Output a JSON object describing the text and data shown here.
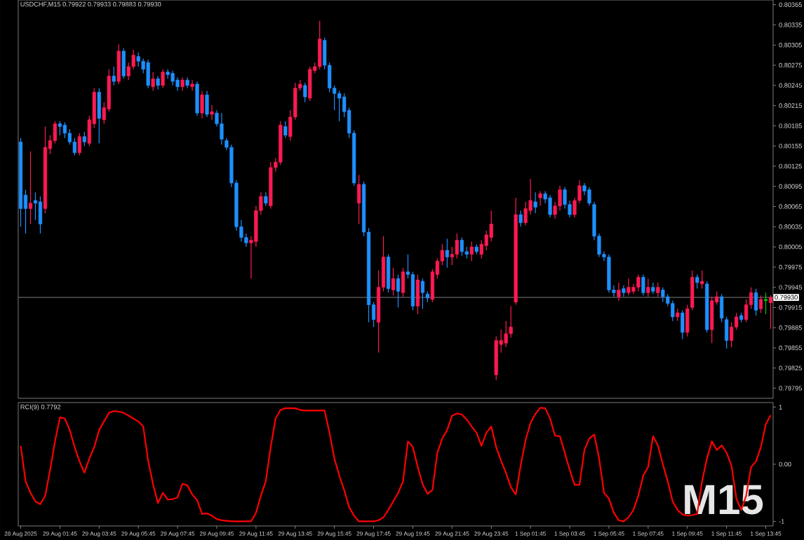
{
  "chart_data": [
    {
      "type": "candlestick",
      "title": "USDCHF,M15  0.79922 0.79933 0.79883 0.79930",
      "tick_labels": "y",
      "ylim": [
        0.7978,
        0.80372
      ],
      "yticks": [
        0.80365,
        0.80335,
        0.80305,
        0.80275,
        0.80245,
        0.80215,
        0.80185,
        0.80155,
        0.80125,
        0.80095,
        0.80065,
        0.80035,
        0.80005,
        0.79975,
        0.79945,
        0.79915,
        0.79885,
        0.79855,
        0.79825,
        0.79795
      ],
      "ref_lines": [
        {
          "axis": "y",
          "value": 0.7993,
          "label": "0.79930",
          "color": "#808080"
        }
      ],
      "categories": [
        null,
        null,
        null,
        null,
        null,
        null,
        null,
        null,
        null,
        null,
        null,
        null,
        null,
        null,
        null,
        null,
        null,
        null,
        null,
        null,
        null,
        null,
        null,
        null,
        null,
        null,
        null,
        null,
        null,
        null,
        null,
        null,
        null,
        null,
        null,
        null,
        null,
        null,
        null,
        null,
        null,
        null,
        null,
        null,
        null,
        null,
        null,
        null,
        null,
        null,
        null,
        null,
        null,
        null,
        null,
        null,
        null,
        null,
        null,
        null,
        null,
        null,
        null,
        null,
        null,
        null,
        null,
        null,
        null,
        null,
        null,
        null,
        null,
        null,
        null,
        null,
        null,
        null,
        null,
        null,
        null,
        null,
        null,
        null,
        null,
        null,
        null,
        null,
        null,
        null,
        null,
        null,
        null,
        null,
        null,
        null,
        null,
        null,
        null,
        null,
        null,
        null,
        null,
        null,
        null,
        null,
        null,
        null,
        null,
        null,
        null,
        null,
        null,
        null,
        null,
        null,
        null,
        null,
        null,
        null,
        null,
        null,
        null,
        null,
        null,
        null,
        null,
        null,
        null,
        null,
        null,
        null,
        null,
        null,
        null,
        null,
        null,
        null,
        null,
        null,
        null,
        null,
        null,
        null,
        null,
        null,
        null,
        null,
        null,
        null,
        null,
        null,
        null,
        null
      ],
      "ohlc": [
        [
          0.80161,
          0.80167,
          0.80035,
          0.80062
        ],
        [
          0.80082,
          0.8009,
          0.80025,
          0.80062
        ],
        [
          0.80062,
          0.80147,
          0.80039,
          0.8007
        ],
        [
          0.80074,
          0.80086,
          0.80045,
          0.8007
        ],
        [
          0.80072,
          0.8008,
          0.80025,
          0.80039
        ],
        [
          0.80062,
          0.80184,
          0.80055,
          0.80153
        ],
        [
          0.80151,
          0.80171,
          0.80143,
          0.80163
        ],
        [
          0.80163,
          0.80192,
          0.80159,
          0.80188
        ],
        [
          0.80188,
          0.80192,
          0.80171,
          0.80184
        ],
        [
          0.80186,
          0.8019,
          0.80167,
          0.80174
        ],
        [
          0.80174,
          0.8018,
          0.80157,
          0.80161
        ],
        [
          0.80161,
          0.80167,
          0.80141,
          0.80145
        ],
        [
          0.80145,
          0.80174,
          0.80141,
          0.80169
        ],
        [
          0.80169,
          0.80176,
          0.80155,
          0.80161
        ],
        [
          0.80159,
          0.802,
          0.80155,
          0.80194
        ],
        [
          0.80188,
          0.80241,
          0.80182,
          0.80235
        ],
        [
          0.80235,
          0.80241,
          0.80159,
          0.80196
        ],
        [
          0.80194,
          0.8022,
          0.80188,
          0.80212
        ],
        [
          0.8021,
          0.80269,
          0.80206,
          0.80259
        ],
        [
          0.80259,
          0.80273,
          0.80245,
          0.80251
        ],
        [
          0.80251,
          0.80306,
          0.80247,
          0.80296
        ],
        [
          0.80296,
          0.803,
          0.80255,
          0.80259
        ],
        [
          0.80259,
          0.80279,
          0.80253,
          0.80273
        ],
        [
          0.80273,
          0.80298,
          0.80269,
          0.8029
        ],
        [
          0.80288,
          0.80294,
          0.80273,
          0.80281
        ],
        [
          0.80281,
          0.80285,
          0.80263,
          0.80269
        ],
        [
          0.80279,
          0.80283,
          0.80241,
          0.80245
        ],
        [
          0.80243,
          0.80265,
          0.80237,
          0.80255
        ],
        [
          0.80255,
          0.80259,
          0.80239,
          0.80245
        ],
        [
          0.80245,
          0.80269,
          0.80241,
          0.80265
        ],
        [
          0.80265,
          0.80269,
          0.80255,
          0.80261
        ],
        [
          0.80263,
          0.80267,
          0.80245,
          0.80251
        ],
        [
          0.80253,
          0.80257,
          0.80237,
          0.80243
        ],
        [
          0.80243,
          0.80257,
          0.80237,
          0.80253
        ],
        [
          0.80253,
          0.80257,
          0.80241,
          0.80245
        ],
        [
          0.80243,
          0.80253,
          0.80237,
          0.80247
        ],
        [
          0.80247,
          0.80251,
          0.802,
          0.80204
        ],
        [
          0.80204,
          0.80237,
          0.80196,
          0.80231
        ],
        [
          0.80231,
          0.80237,
          0.80198,
          0.80202
        ],
        [
          0.80202,
          0.80216,
          0.80194,
          0.80206
        ],
        [
          0.80204,
          0.80208,
          0.80184,
          0.80188
        ],
        [
          0.80188,
          0.80204,
          0.80157,
          0.80165
        ],
        [
          0.80163,
          0.80167,
          0.80149,
          0.80153
        ],
        [
          0.80153,
          0.80157,
          0.80094,
          0.801
        ],
        [
          0.801,
          0.80104,
          0.80029,
          0.80035
        ],
        [
          0.80035,
          0.80045,
          0.80013,
          0.80019
        ],
        [
          0.80019,
          0.80025,
          0.80005,
          0.80011
        ],
        [
          0.80011,
          0.80021,
          0.79958,
          0.80015
        ],
        [
          0.80013,
          0.80066,
          0.80005,
          0.80059
        ],
        [
          0.80059,
          0.80086,
          0.80053,
          0.8008
        ],
        [
          0.8008,
          0.80086,
          0.80066,
          0.8007
        ],
        [
          0.80066,
          0.80131,
          0.80062,
          0.80123
        ],
        [
          0.80123,
          0.80137,
          0.80117,
          0.80131
        ],
        [
          0.80131,
          0.80192,
          0.80127,
          0.80186
        ],
        [
          0.80184,
          0.80192,
          0.80167,
          0.80171
        ],
        [
          0.80169,
          0.80208,
          0.80163,
          0.80198
        ],
        [
          0.80198,
          0.80249,
          0.80194,
          0.80241
        ],
        [
          0.80241,
          0.80253,
          0.80237,
          0.80247
        ],
        [
          0.80245,
          0.80249,
          0.8022,
          0.80228
        ],
        [
          0.80226,
          0.80273,
          0.80222,
          0.80269
        ],
        [
          0.80267,
          0.80279,
          0.80263,
          0.80273
        ],
        [
          0.80273,
          0.80341,
          0.80269,
          0.80314
        ],
        [
          0.80312,
          0.80316,
          0.80269,
          0.80275
        ],
        [
          0.80275,
          0.80279,
          0.80235,
          0.80241
        ],
        [
          0.80241,
          0.80245,
          0.80208,
          0.80233
        ],
        [
          0.80233,
          0.80237,
          0.80192,
          0.80226
        ],
        [
          0.80228,
          0.80233,
          0.80198,
          0.80206
        ],
        [
          0.80208,
          0.80212,
          0.80167,
          0.80174
        ],
        [
          0.80174,
          0.80178,
          0.80096,
          0.801
        ],
        [
          0.8007,
          0.80112,
          0.80039,
          0.80098
        ],
        [
          0.80098,
          0.80102,
          0.80021,
          0.80027
        ],
        [
          0.80027,
          0.80033,
          0.79893,
          0.79919
        ],
        [
          0.79919,
          0.79923,
          0.79886,
          0.79897
        ],
        [
          0.79893,
          0.7997,
          0.79848,
          0.79945
        ],
        [
          0.79945,
          0.80021,
          0.79939,
          0.7999
        ],
        [
          0.7999,
          0.79994,
          0.79937,
          0.79943
        ],
        [
          0.79941,
          0.79974,
          0.79933,
          0.79958
        ],
        [
          0.79958,
          0.79964,
          0.79915,
          0.79939
        ],
        [
          0.79937,
          0.79974,
          0.79931,
          0.79968
        ],
        [
          0.79968,
          0.79994,
          0.79958,
          0.79964
        ],
        [
          0.79964,
          0.79968,
          0.79911,
          0.79917
        ],
        [
          0.79917,
          0.79964,
          0.79905,
          0.79956
        ],
        [
          0.79954,
          0.79958,
          0.79913,
          0.79937
        ],
        [
          0.79935,
          0.79939,
          0.79923,
          0.79929
        ],
        [
          0.79927,
          0.79972,
          0.79923,
          0.79968
        ],
        [
          0.79964,
          0.79988,
          0.79958,
          0.79984
        ],
        [
          0.79984,
          0.80009,
          0.79978,
          0.8
        ],
        [
          0.8,
          0.80017,
          0.79974,
          0.7999
        ],
        [
          0.7999,
          0.80005,
          0.79978,
          0.79994
        ],
        [
          0.79994,
          0.80025,
          0.79988,
          0.80015
        ],
        [
          0.80015,
          0.80019,
          0.79992,
          0.79998
        ],
        [
          0.79998,
          0.80005,
          0.79988,
          0.79994
        ],
        [
          0.79994,
          0.80013,
          0.79984,
          0.80005
        ],
        [
          0.80005,
          0.80009,
          0.79994,
          0.79998
        ],
        [
          0.79994,
          0.80015,
          0.79988,
          0.80009
        ],
        [
          0.80007,
          0.80029,
          0.8,
          0.80023
        ],
        [
          0.80019,
          0.80059,
          0.80013,
          0.80039
        ],
        [
          0.79815,
          0.79872,
          0.79807,
          0.79866
        ],
        [
          0.7986,
          0.79882,
          0.79848,
          0.79866
        ],
        [
          0.79862,
          0.79895,
          0.79856,
          0.79876
        ],
        [
          0.79876,
          0.79917,
          0.7987,
          0.79886
        ],
        [
          0.79923,
          0.80078,
          0.79919,
          0.80053
        ],
        [
          0.80053,
          0.80059,
          0.80035,
          0.80041
        ],
        [
          0.80041,
          0.80072,
          0.80037,
          0.80062
        ],
        [
          0.80059,
          0.80106,
          0.80053,
          0.80074
        ],
        [
          0.80072,
          0.80086,
          0.80055,
          0.80064
        ],
        [
          0.80078,
          0.80088,
          0.80066,
          0.80084
        ],
        [
          0.80084,
          0.80088,
          0.8007,
          0.80076
        ],
        [
          0.80078,
          0.80082,
          0.80049,
          0.80053
        ],
        [
          0.80053,
          0.80072,
          0.80047,
          0.80066
        ],
        [
          0.80066,
          0.80096,
          0.80059,
          0.8009
        ],
        [
          0.8009,
          0.80094,
          0.80062,
          0.80068
        ],
        [
          0.80068,
          0.80074,
          0.80049,
          0.80053
        ],
        [
          0.80053,
          0.80078,
          0.80049,
          0.80074
        ],
        [
          0.80074,
          0.80104,
          0.8007,
          0.80096
        ],
        [
          0.80096,
          0.801,
          0.80082,
          0.80088
        ],
        [
          0.8009,
          0.80094,
          0.80066,
          0.8007
        ],
        [
          0.80068,
          0.80072,
          0.80015,
          0.80021
        ],
        [
          0.80021,
          0.80025,
          0.7999,
          0.79994
        ],
        [
          0.79994,
          0.79998,
          0.79984,
          0.7999
        ],
        [
          0.7999,
          0.79994,
          0.79937,
          0.79941
        ],
        [
          0.79941,
          0.79948,
          0.79931,
          0.79937
        ],
        [
          0.79931,
          0.79952,
          0.79925,
          0.79941
        ],
        [
          0.79943,
          0.79948,
          0.79931,
          0.79937
        ],
        [
          0.79937,
          0.79958,
          0.79933,
          0.79945
        ],
        [
          0.79939,
          0.7995,
          0.79935,
          0.79945
        ],
        [
          0.79945,
          0.79964,
          0.79939,
          0.7996
        ],
        [
          0.7996,
          0.79964,
          0.79933,
          0.79937
        ],
        [
          0.79937,
          0.79958,
          0.79931,
          0.79945
        ],
        [
          0.79945,
          0.79952,
          0.79935,
          0.79939
        ],
        [
          0.79937,
          0.79952,
          0.79931,
          0.79945
        ],
        [
          0.79941,
          0.79945,
          0.79923,
          0.79931
        ],
        [
          0.79931,
          0.79935,
          0.79917,
          0.79921
        ],
        [
          0.79921,
          0.79925,
          0.79895,
          0.79901
        ],
        [
          0.79901,
          0.79913,
          0.79895,
          0.79907
        ],
        [
          0.79907,
          0.79911,
          0.79868,
          0.79878
        ],
        [
          0.79878,
          0.79919,
          0.79872,
          0.79913
        ],
        [
          0.79915,
          0.7997,
          0.79911,
          0.7996
        ],
        [
          0.7996,
          0.79964,
          0.79943,
          0.79952
        ],
        [
          0.7995,
          0.7997,
          0.79943,
          0.79954
        ],
        [
          0.7995,
          0.79954,
          0.79878,
          0.79882
        ],
        [
          0.79882,
          0.79931,
          0.79862,
          0.79925
        ],
        [
          0.79923,
          0.79939,
          0.79919,
          0.79931
        ],
        [
          0.79931,
          0.79935,
          0.79893,
          0.79899
        ],
        [
          0.79897,
          0.79901,
          0.79854,
          0.79866
        ],
        [
          0.79866,
          0.79893,
          0.79856,
          0.79886
        ],
        [
          0.79886,
          0.79907,
          0.79882,
          0.79901
        ],
        [
          0.79903,
          0.79907,
          0.79893,
          0.79897
        ],
        [
          0.79897,
          0.79927,
          0.79893,
          0.79919
        ],
        [
          0.79919,
          0.79945,
          0.79913,
          0.79937
        ],
        [
          0.79937,
          0.79943,
          0.79903,
          0.79911
        ],
        [
          0.79913,
          0.79933,
          0.79907,
          0.79927
        ],
        [
          0.79925,
          0.79937,
          0.79905,
          0.79927
        ],
        [
          0.79922,
          0.79933,
          0.79883,
          0.7993
        ]
      ],
      "colors": [
        "#1e90ff",
        "#1e90ff",
        "#ff1a53",
        "#1e90ff",
        "#1e90ff",
        "#ff1a53",
        "#ff1a53",
        "#ff1a53",
        "#1e90ff",
        "#1e90ff",
        "#1e90ff",
        "#1e90ff",
        "#ff1a53",
        "#1e90ff",
        "#ff1a53",
        "#ff1a53",
        "#1e90ff",
        "#ff1a53",
        "#ff1a53",
        "#1e90ff",
        "#ff1a53",
        "#1e90ff",
        "#ff1a53",
        "#ff1a53",
        "#1e90ff",
        "#1e90ff",
        "#1e90ff",
        "#ff1a53",
        "#1e90ff",
        "#ff1a53",
        "#1e90ff",
        "#1e90ff",
        "#1e90ff",
        "#ff1a53",
        "#1e90ff",
        "#ff1a53",
        "#1e90ff",
        "#ff1a53",
        "#1e90ff",
        "#ff1a53",
        "#1e90ff",
        "#1e90ff",
        "#1e90ff",
        "#1e90ff",
        "#1e90ff",
        "#1e90ff",
        "#1e90ff",
        "#ff1a53",
        "#ff1a53",
        "#ff1a53",
        "#1e90ff",
        "#ff1a53",
        "#ff1a53",
        "#ff1a53",
        "#1e90ff",
        "#ff1a53",
        "#ff1a53",
        "#ff1a53",
        "#1e90ff",
        "#ff1a53",
        "#ff1a53",
        "#ff1a53",
        "#1e90ff",
        "#1e90ff",
        "#1e90ff",
        "#1e90ff",
        "#1e90ff",
        "#1e90ff",
        "#1e90ff",
        "#ff1a53",
        "#1e90ff",
        "#1e90ff",
        "#1e90ff",
        "#ff1a53",
        "#ff1a53",
        "#1e90ff",
        "#ff1a53",
        "#1e90ff",
        "#ff1a53",
        "#1e90ff",
        "#1e90ff",
        "#ff1a53",
        "#1e90ff",
        "#1e90ff",
        "#ff1a53",
        "#ff1a53",
        "#ff1a53",
        "#1e90ff",
        "#ff1a53",
        "#ff1a53",
        "#1e90ff",
        "#1e90ff",
        "#ff1a53",
        "#1e90ff",
        "#ff1a53",
        "#ff1a53",
        "#ff1a53",
        "#ff1a53",
        "#ff1a53",
        "#ff1a53",
        "#ff1a53",
        "#ff1a53",
        "#1e90ff",
        "#ff1a53",
        "#ff1a53",
        "#1e90ff",
        "#ff1a53",
        "#1e90ff",
        "#1e90ff",
        "#ff1a53",
        "#ff1a53",
        "#1e90ff",
        "#1e90ff",
        "#ff1a53",
        "#ff1a53",
        "#1e90ff",
        "#1e90ff",
        "#1e90ff",
        "#1e90ff",
        "#1e90ff",
        "#1e90ff",
        "#1e90ff",
        "#ff1a53",
        "#1e90ff",
        "#ff1a53",
        "#ff1a53",
        "#ff1a53",
        "#1e90ff",
        "#ff1a53",
        "#1e90ff",
        "#ff1a53",
        "#1e90ff",
        "#1e90ff",
        "#1e90ff",
        "#ff1a53",
        "#1e90ff",
        "#ff1a53",
        "#ff1a53",
        "#1e90ff",
        "#ff1a53",
        "#1e90ff",
        "#ff1a53",
        "#ff1a53",
        "#1e90ff",
        "#1e90ff",
        "#ff1a53",
        "#ff1a53",
        "#1e90ff",
        "#ff1a53",
        "#ff1a53",
        "#1e90ff",
        "#ff1a53",
        "#00c800",
        "#ff1a53"
      ]
    },
    {
      "type": "line",
      "title": "RCI(9) 0.7792",
      "color": "#ff0000",
      "ylim": [
        -1.08,
        1.08
      ],
      "yticks": [
        1,
        {
          "value": 0,
          "label": "0.00"
        },
        -1
      ],
      "annotations": [
        "M15"
      ],
      "categories": [
        "28 Aug 2025",
        null,
        null,
        null,
        null,
        null,
        null,
        null,
        "29 Aug 01:45",
        null,
        null,
        null,
        null,
        null,
        null,
        null,
        "29 Aug 03:45",
        null,
        null,
        null,
        null,
        null,
        null,
        null,
        "29 Aug 05:45",
        null,
        null,
        null,
        null,
        null,
        null,
        null,
        "29 Aug 07:45",
        null,
        null,
        null,
        null,
        null,
        null,
        null,
        "29 Aug 09:45",
        null,
        null,
        null,
        null,
        null,
        null,
        null,
        "29 Aug 11:45",
        null,
        null,
        null,
        null,
        null,
        null,
        null,
        "29 Aug 13:45",
        null,
        null,
        null,
        null,
        null,
        null,
        null,
        "29 Aug 15:45",
        null,
        null,
        null,
        null,
        null,
        null,
        null,
        "29 Aug 17:45",
        null,
        null,
        null,
        null,
        null,
        null,
        null,
        "29 Aug 19:45",
        null,
        null,
        null,
        null,
        null,
        null,
        null,
        "29 Aug 21:45",
        null,
        null,
        null,
        null,
        null,
        null,
        null,
        "29 Aug 23:45",
        null,
        null,
        null,
        null,
        null,
        null,
        null,
        "1 Sep 01:45",
        null,
        null,
        null,
        null,
        null,
        null,
        null,
        "1 Sep 03:45",
        null,
        null,
        null,
        null,
        null,
        null,
        null,
        "1 Sep 05:45",
        null,
        null,
        null,
        null,
        null,
        null,
        null,
        "1 Sep 07:45",
        null,
        null,
        null,
        null,
        null,
        null,
        null,
        "1 Sep 09:45",
        null,
        null,
        null,
        null,
        null,
        null,
        null,
        "1 Sep 11:45",
        null,
        null,
        null,
        null,
        null,
        null,
        null,
        "1 Sep 13:45",
        null
      ],
      "values": [
        0.32,
        -0.3,
        -0.5,
        -0.65,
        -0.7,
        -0.55,
        -0.1,
        0.4,
        0.82,
        0.8,
        0.6,
        0.3,
        0.05,
        -0.15,
        0.1,
        0.3,
        0.6,
        0.75,
        0.9,
        0.93,
        0.92,
        0.9,
        0.85,
        0.8,
        0.75,
        0.66,
        0.06,
        -0.35,
        -0.68,
        -0.5,
        -0.62,
        -0.61,
        -0.58,
        -0.34,
        -0.37,
        -0.53,
        -0.63,
        -0.87,
        -0.86,
        -0.9,
        -0.96,
        -0.98,
        -0.99,
        -1.0,
        -1.0,
        -1.0,
        -1.0,
        -1.0,
        -0.85,
        -0.55,
        -0.3,
        0.3,
        0.8,
        0.95,
        0.98,
        0.98,
        0.98,
        0.95,
        0.94,
        0.94,
        0.94,
        0.94,
        0.94,
        0.55,
        0.1,
        -0.2,
        -0.45,
        -0.75,
        -0.9,
        -1.0,
        -1.0,
        -1.0,
        -1.0,
        -0.98,
        -0.93,
        -0.8,
        -0.65,
        -0.5,
        -0.3,
        0.4,
        0.3,
        -0.05,
        -0.35,
        -0.52,
        -0.45,
        0.2,
        0.45,
        0.6,
        0.85,
        0.89,
        0.87,
        0.78,
        0.66,
        0.55,
        0.32,
        0.55,
        0.66,
        0.3,
        0.06,
        -0.15,
        -0.4,
        -0.53,
        -0.02,
        0.42,
        0.72,
        0.88,
        0.99,
        0.98,
        0.8,
        0.5,
        0.49,
        0.2,
        -0.1,
        -0.36,
        -0.36,
        0.25,
        0.45,
        0.52,
        0.1,
        -0.5,
        -0.6,
        -0.85,
        -0.98,
        -1.0,
        -0.93,
        -0.8,
        -0.55,
        -0.2,
        -0.05,
        0.49,
        0.33,
        0.0,
        -0.3,
        -0.65,
        -0.8,
        -0.88,
        -0.9,
        -0.89,
        -0.87,
        -0.3,
        0.1,
        0.4,
        0.25,
        0.33,
        0.2,
        -0.02,
        -0.6,
        -0.8,
        -0.55,
        -0.05,
        0.05,
        0.3,
        0.7,
        0.86
      ]
    }
  ]
}
